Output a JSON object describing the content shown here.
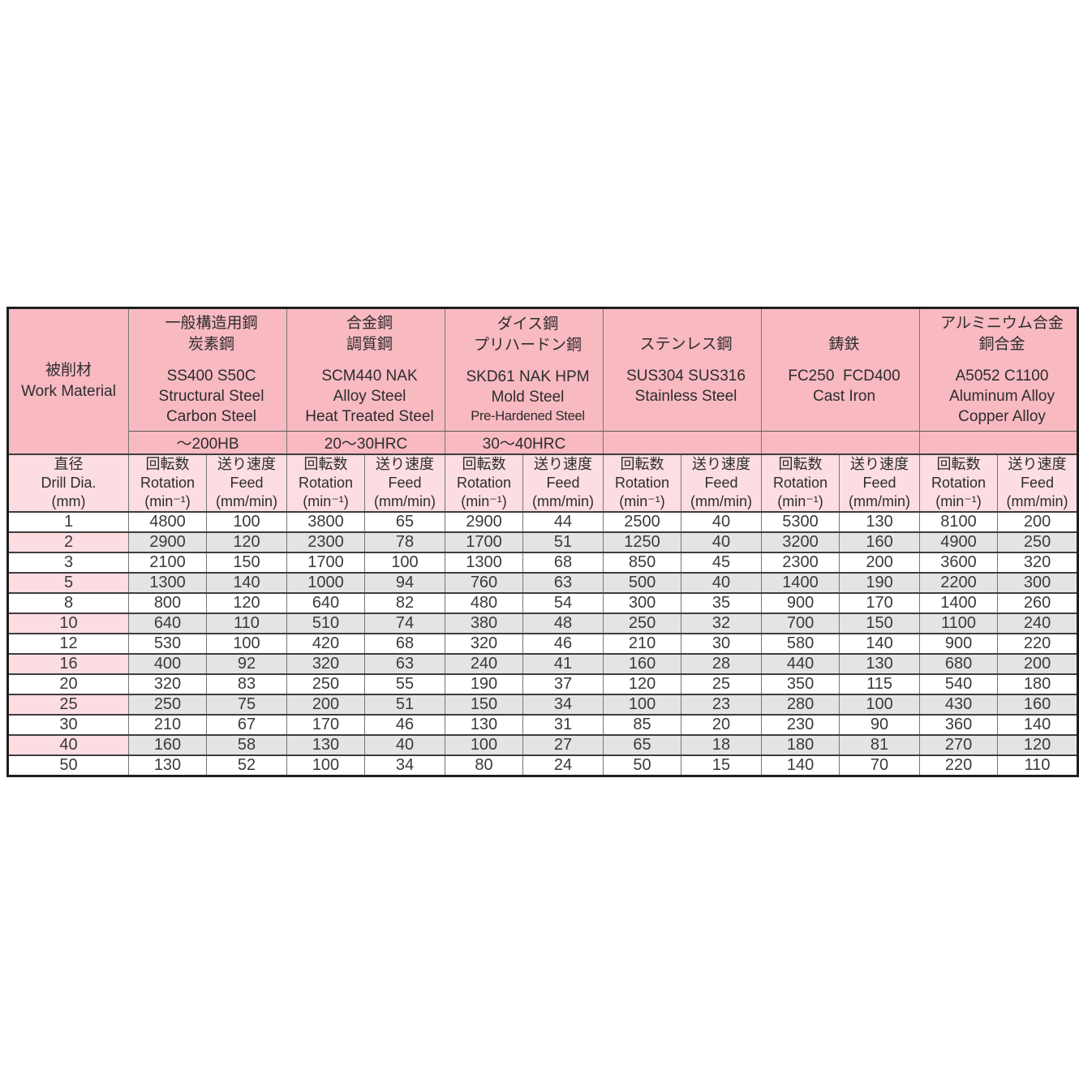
{
  "table": {
    "corner": {
      "label": "被削材\nWork Material"
    },
    "materials": [
      {
        "jp": "一般構造用鋼\n炭素鋼",
        "codes_en": "SS400 S50C\nStructural Steel\nCarbon Steel",
        "hardness": "～200HB"
      },
      {
        "jp": "合金鋼\n調質鋼",
        "codes_en": "SCM440 NAK\nAlloy Steel\nHeat Treated Steel",
        "hardness": "20～30HRC"
      },
      {
        "jp": "ダイス鋼\nプリハードン鋼",
        "codes_en": "SKD61 NAK HPM\nMold Steel",
        "en_note": "Pre-Hardened Steel",
        "hardness": "30～40HRC"
      },
      {
        "jp": "ステンレス鋼",
        "codes_en": "SUS304 SUS316\nStainless Steel",
        "hardness": ""
      },
      {
        "jp": "鋳鉄",
        "codes_en": "FC250  FCD400\nCast Iron",
        "hardness": ""
      },
      {
        "jp": "アルミニウム合金\n銅合金",
        "codes_en": "A5052 C1100\nAluminum Alloy\nCopper Alloy",
        "hardness": ""
      }
    ],
    "dia_header": "直径\nDrill Dia.\n(mm)",
    "rotation_header": "回転数\nRotation\n(min⁻¹)",
    "feed_header": "送り速度\nFeed\n(mm/min)",
    "rows": [
      {
        "dia": "1",
        "shaded": false,
        "values": [
          "4800",
          "100",
          "3800",
          "65",
          "2900",
          "44",
          "2500",
          "40",
          "5300",
          "130",
          "8100",
          "200"
        ]
      },
      {
        "dia": "2",
        "shaded": true,
        "values": [
          "2900",
          "120",
          "2300",
          "78",
          "1700",
          "51",
          "1250",
          "40",
          "3200",
          "160",
          "4900",
          "250"
        ]
      },
      {
        "dia": "3",
        "shaded": false,
        "values": [
          "2100",
          "150",
          "1700",
          "100",
          "1300",
          "68",
          "850",
          "45",
          "2300",
          "200",
          "3600",
          "320"
        ]
      },
      {
        "dia": "5",
        "shaded": true,
        "values": [
          "1300",
          "140",
          "1000",
          "94",
          "760",
          "63",
          "500",
          "40",
          "1400",
          "190",
          "2200",
          "300"
        ]
      },
      {
        "dia": "8",
        "shaded": false,
        "values": [
          "800",
          "120",
          "640",
          "82",
          "480",
          "54",
          "300",
          "35",
          "900",
          "170",
          "1400",
          "260"
        ]
      },
      {
        "dia": "10",
        "shaded": true,
        "values": [
          "640",
          "110",
          "510",
          "74",
          "380",
          "48",
          "250",
          "32",
          "700",
          "150",
          "1100",
          "240"
        ]
      },
      {
        "dia": "12",
        "shaded": false,
        "values": [
          "530",
          "100",
          "420",
          "68",
          "320",
          "46",
          "210",
          "30",
          "580",
          "140",
          "900",
          "220"
        ]
      },
      {
        "dia": "16",
        "shaded": true,
        "values": [
          "400",
          "92",
          "320",
          "63",
          "240",
          "41",
          "160",
          "28",
          "440",
          "130",
          "680",
          "200"
        ]
      },
      {
        "dia": "20",
        "shaded": false,
        "values": [
          "320",
          "83",
          "250",
          "55",
          "190",
          "37",
          "120",
          "25",
          "350",
          "115",
          "540",
          "180"
        ]
      },
      {
        "dia": "25",
        "shaded": true,
        "values": [
          "250",
          "75",
          "200",
          "51",
          "150",
          "34",
          "100",
          "23",
          "280",
          "100",
          "430",
          "160"
        ]
      },
      {
        "dia": "30",
        "shaded": false,
        "values": [
          "210",
          "67",
          "170",
          "46",
          "130",
          "31",
          "85",
          "20",
          "230",
          "90",
          "360",
          "140"
        ]
      },
      {
        "dia": "40",
        "shaded": true,
        "values": [
          "160",
          "58",
          "130",
          "40",
          "100",
          "27",
          "65",
          "18",
          "180",
          "81",
          "270",
          "120"
        ]
      },
      {
        "dia": "50",
        "shaded": false,
        "values": [
          "130",
          "52",
          "100",
          "34",
          "80",
          "24",
          "50",
          "15",
          "140",
          "70",
          "220",
          "110"
        ]
      }
    ],
    "colors": {
      "header_pink": "#f8b9c1",
      "light_pink": "#fcdde2",
      "shaded_gray": "#e4e4e6",
      "border_dark": "#1e1e1e",
      "text": "#333333"
    }
  },
  "chart_data": {
    "type": "table",
    "title": "被削材 Work Material — drilling rotation and feed conditions",
    "column_groups": [
      "直径 Drill Dia. (mm)",
      "一般構造用鋼 炭素鋼 SS400 S50C Structural Steel Carbon Steel ～200HB",
      "合金鋼 調質鋼 SCM440 NAK Alloy Steel Heat Treated Steel 20～30HRC",
      "ダイス鋼 プリハードン鋼 SKD61 NAK HPM Mold Steel Pre-Hardened Steel 30～40HRC",
      "ステンレス鋼 SUS304 SUS316 Stainless Steel",
      "鋳鉄 FC250 FCD400 Cast Iron",
      "アルミニウム合金 銅合金 A5052 C1100 Aluminum Alloy Copper Alloy"
    ],
    "sub_columns_per_group": [
      "回転数 Rotation (min⁻¹)",
      "送り速度 Feed (mm/min)"
    ],
    "rows": [
      [
        1,
        4800,
        100,
        3800,
        65,
        2900,
        44,
        2500,
        40,
        5300,
        130,
        8100,
        200
      ],
      [
        2,
        2900,
        120,
        2300,
        78,
        1700,
        51,
        1250,
        40,
        3200,
        160,
        4900,
        250
      ],
      [
        3,
        2100,
        150,
        1700,
        100,
        1300,
        68,
        850,
        45,
        2300,
        200,
        3600,
        320
      ],
      [
        5,
        1300,
        140,
        1000,
        94,
        760,
        63,
        500,
        40,
        1400,
        190,
        2200,
        300
      ],
      [
        8,
        800,
        120,
        640,
        82,
        480,
        54,
        300,
        35,
        900,
        170,
        1400,
        260
      ],
      [
        10,
        640,
        110,
        510,
        74,
        380,
        48,
        250,
        32,
        700,
        150,
        1100,
        240
      ],
      [
        12,
        530,
        100,
        420,
        68,
        320,
        46,
        210,
        30,
        580,
        140,
        900,
        220
      ],
      [
        16,
        400,
        92,
        320,
        63,
        240,
        41,
        160,
        28,
        440,
        130,
        680,
        200
      ],
      [
        20,
        320,
        83,
        250,
        55,
        190,
        37,
        120,
        25,
        350,
        115,
        540,
        180
      ],
      [
        25,
        250,
        75,
        200,
        51,
        150,
        34,
        100,
        23,
        280,
        100,
        430,
        160
      ],
      [
        30,
        210,
        67,
        170,
        46,
        130,
        31,
        85,
        20,
        230,
        90,
        360,
        140
      ],
      [
        40,
        160,
        58,
        130,
        40,
        100,
        27,
        65,
        18,
        180,
        81,
        270,
        120
      ],
      [
        50,
        130,
        52,
        100,
        34,
        80,
        24,
        50,
        15,
        140,
        70,
        220,
        110
      ]
    ]
  }
}
